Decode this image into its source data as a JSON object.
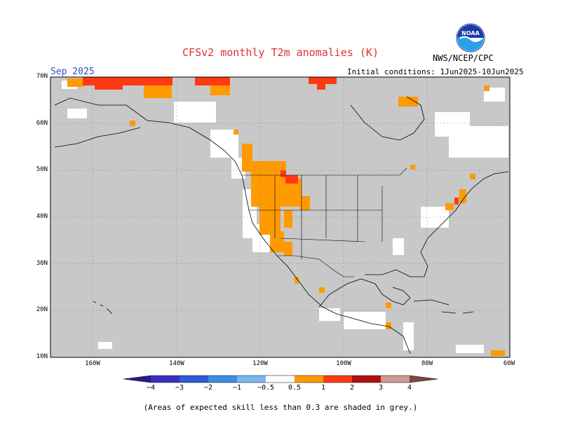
{
  "title": "CFSv2 monthly T2m anomalies (K)",
  "target_month": "Sep 2025",
  "initial_conditions": "Initial conditions: 1Jun2025-10Jun2025",
  "agency": "NWS/NCEP/CPC",
  "logo_text": "NOAA",
  "lat_labels": [
    "70N",
    "60N",
    "50N",
    "40N",
    "30N",
    "20N",
    "10N"
  ],
  "lon_labels": [
    "160W",
    "140W",
    "120W",
    "100W",
    "80W",
    "60W"
  ],
  "colorbar_labels": [
    "−4",
    "−3",
    "−2",
    "−1",
    "−0.5",
    "0.5",
    "1",
    "2",
    "3",
    "4"
  ],
  "colorbar_colors": [
    "#2a1a8a",
    "#3a2ec0",
    "#2f5ad8",
    "#3b8ee6",
    "#7ab8f0",
    "#ffffff",
    "#ff9a00",
    "#ff3a12",
    "#b01010",
    "#c89c92",
    "#7a4a40"
  ],
  "footnote": "(Areas of expected skill less than 0.3 are shaded in grey.)",
  "colors": {
    "grey": "#c8c8c8",
    "orange": "#ff9a00",
    "red": "#ff3a12",
    "title_red": "#e03030",
    "month_blue": "#3050c0"
  }
}
